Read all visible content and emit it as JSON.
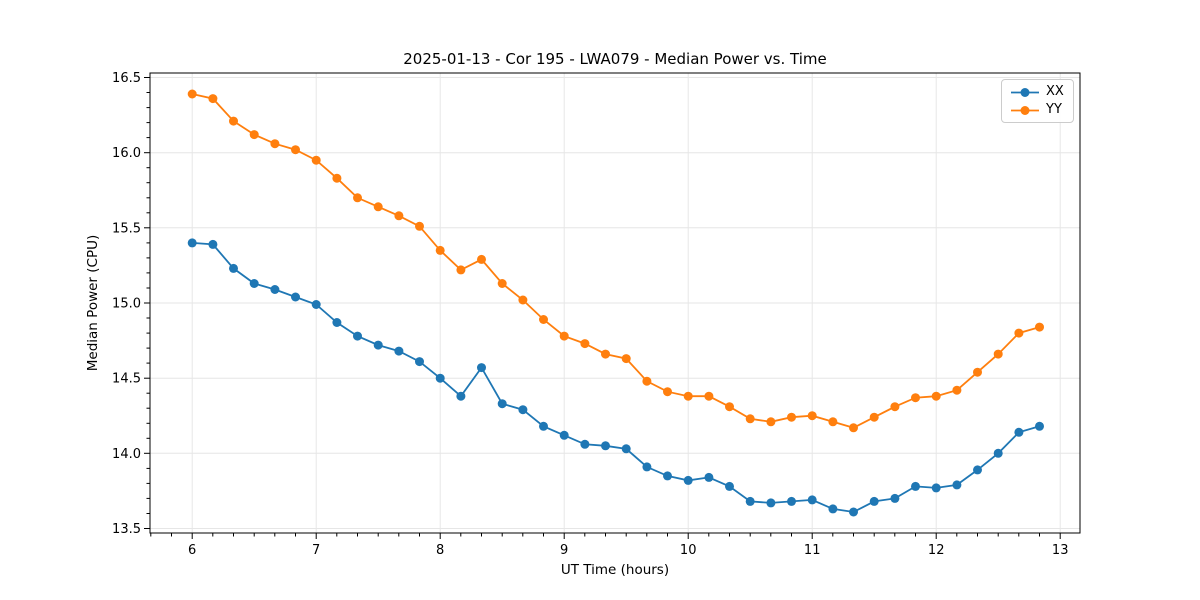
{
  "figure": {
    "title": "2025-01-13 - Cor 195 - LWA079 - Median Power vs. Time",
    "xlabel": "UT Time (hours)",
    "ylabel": "Median Power (CPU)"
  },
  "chart_data": {
    "type": "line",
    "title": "2025-01-13 - Cor 195 - LWA079 - Median Power vs. Time",
    "xlabel": "UT Time (hours)",
    "ylabel": "Median Power (CPU)",
    "x": [
      6.0,
      6.167,
      6.333,
      6.5,
      6.667,
      6.833,
      7.0,
      7.167,
      7.333,
      7.5,
      7.667,
      7.833,
      8.0,
      8.167,
      8.333,
      8.5,
      8.667,
      8.833,
      9.0,
      9.167,
      9.333,
      9.5,
      9.667,
      9.833,
      10.0,
      10.167,
      10.333,
      10.5,
      10.667,
      10.833,
      11.0,
      11.167,
      11.333,
      11.5,
      11.667,
      11.833,
      12.0,
      12.167,
      12.333,
      12.5,
      12.667,
      12.833
    ],
    "series": [
      {
        "name": "XX",
        "color": "#1f77b4",
        "values": [
          15.4,
          15.39,
          15.23,
          15.13,
          15.09,
          15.04,
          14.99,
          14.87,
          14.78,
          14.72,
          14.68,
          14.61,
          14.5,
          14.38,
          14.57,
          14.33,
          14.29,
          14.18,
          14.12,
          14.06,
          14.05,
          14.03,
          13.91,
          13.85,
          13.82,
          13.84,
          13.78,
          13.68,
          13.67,
          13.68,
          13.69,
          13.63,
          13.61,
          13.68,
          13.7,
          13.78,
          13.77,
          13.79,
          13.89,
          14.0,
          14.14,
          14.18
        ]
      },
      {
        "name": "YY",
        "color": "#ff7f0e",
        "values": [
          16.39,
          16.36,
          16.21,
          16.12,
          16.06,
          16.02,
          15.95,
          15.83,
          15.7,
          15.64,
          15.58,
          15.51,
          15.35,
          15.22,
          15.29,
          15.13,
          15.02,
          14.89,
          14.78,
          14.73,
          14.66,
          14.63,
          14.48,
          14.41,
          14.38,
          14.38,
          14.31,
          14.23,
          14.21,
          14.24,
          14.25,
          14.21,
          14.17,
          14.24,
          14.31,
          14.37,
          14.38,
          14.42,
          14.54,
          14.66,
          14.8,
          14.84
        ]
      }
    ],
    "xlim": [
      5.66,
      13.16
    ],
    "ylim": [
      13.47,
      16.53
    ],
    "xticks": [
      6,
      7,
      8,
      9,
      10,
      11,
      12,
      13
    ],
    "yticks": [
      13.5,
      14.0,
      14.5,
      15.0,
      15.5,
      16.0,
      16.5
    ],
    "x_minor_step": 0.1667,
    "y_minor_step": 0.1,
    "grid": true,
    "legend_position": "upper right",
    "grid_color": "#e6e6e6",
    "marker": "o",
    "marker_radius": 4.5,
    "line_width": 1.8
  }
}
